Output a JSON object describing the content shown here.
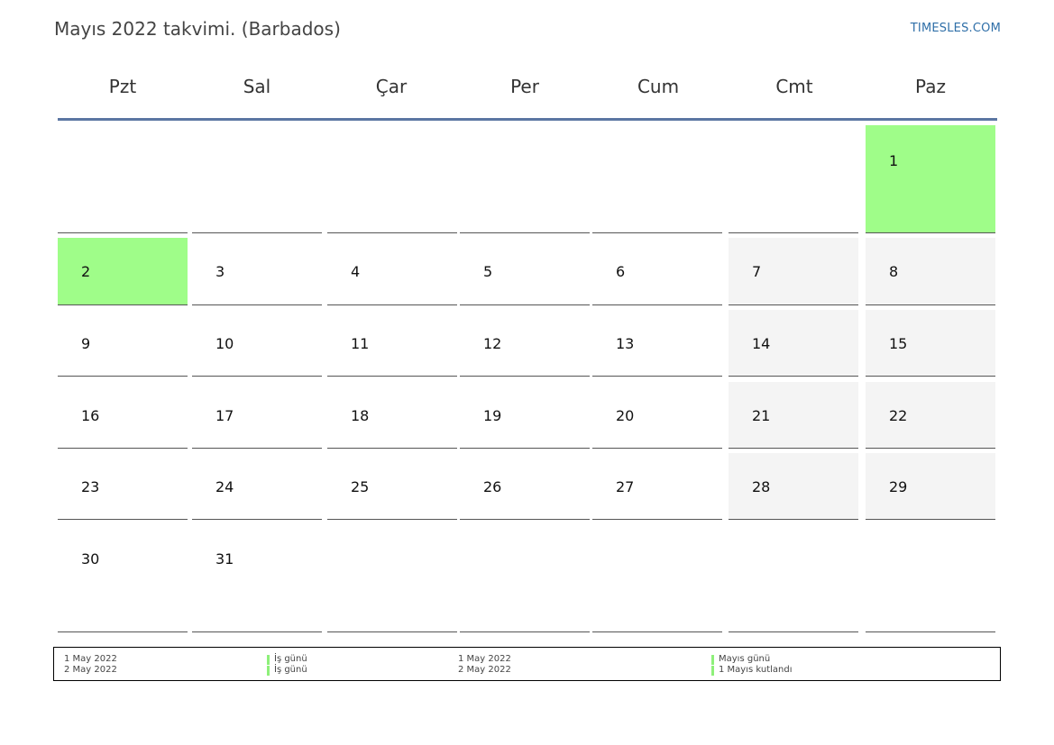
{
  "header": {
    "title": "Mayıs 2022 takvimi. (Barbados)",
    "brand": "TIMESLES.COM"
  },
  "calendar": {
    "weekdays": [
      "Pzt",
      "Sal",
      "Çar",
      "Per",
      "Cum",
      "Cmt",
      "Paz"
    ],
    "colors": {
      "holiday": "#9ffd89",
      "weekend": "#f4f4f4",
      "rule": "#5b76a2"
    },
    "weeks": [
      [
        null,
        null,
        null,
        null,
        null,
        null,
        1
      ],
      [
        2,
        3,
        4,
        5,
        6,
        7,
        8
      ],
      [
        9,
        10,
        11,
        12,
        13,
        14,
        15
      ],
      [
        16,
        17,
        18,
        19,
        20,
        21,
        22
      ],
      [
        23,
        24,
        25,
        26,
        27,
        28,
        29
      ],
      [
        30,
        31,
        null,
        null,
        null,
        null,
        null
      ]
    ],
    "holidays": [
      1,
      2
    ]
  },
  "legend": {
    "left": [
      {
        "date": "1 May 2022",
        "label": "İş günü"
      },
      {
        "date": "2 May 2022",
        "label": "İş günü"
      }
    ],
    "right": [
      {
        "date": "1 May 2022",
        "label": "Mayıs günü"
      },
      {
        "date": "2 May 2022",
        "label": "1 Mayıs kutlandı"
      }
    ]
  }
}
